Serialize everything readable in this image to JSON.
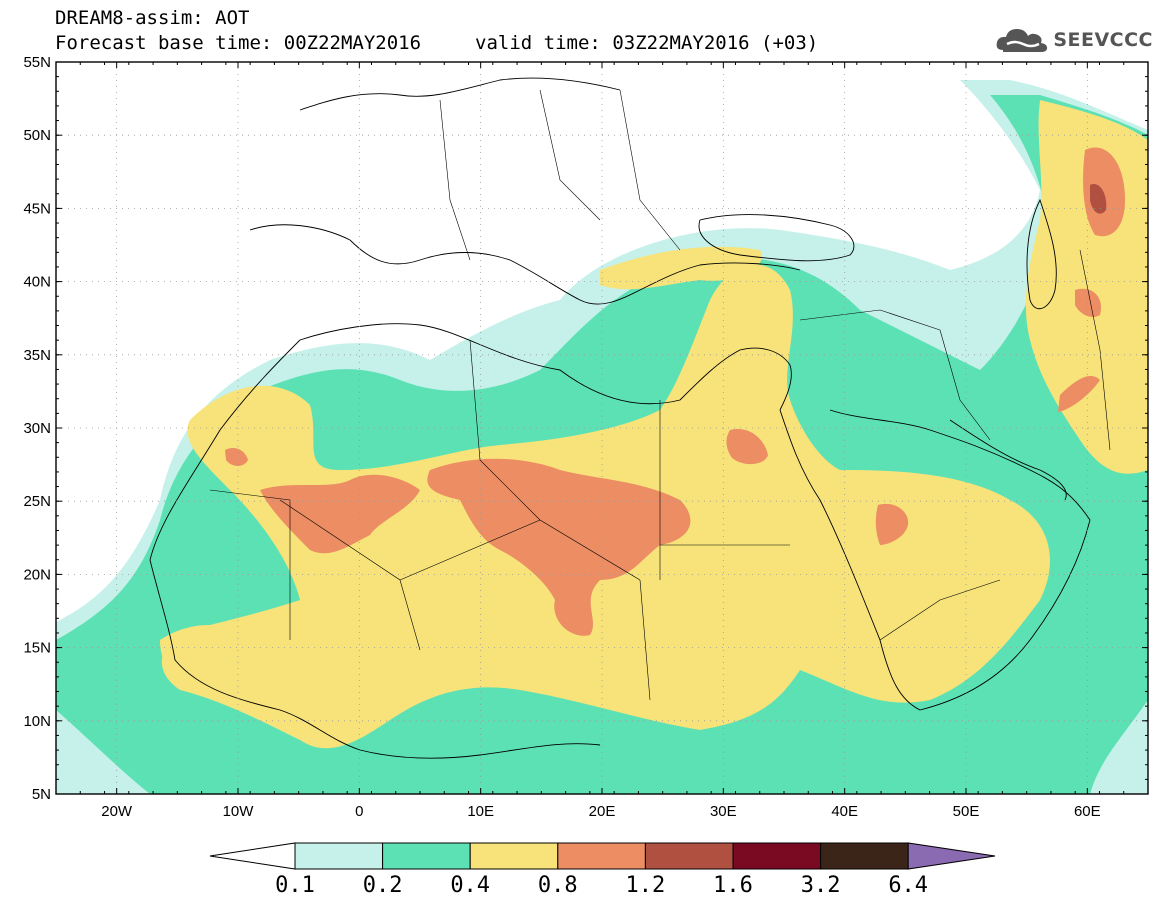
{
  "header": {
    "title_line1": "DREAM8-assim: AOT",
    "base_time": "Forecast base time: 00Z22MAY2016",
    "valid_time": "valid time: 03Z22MAY2016 (+03)"
  },
  "logo": {
    "text": "SEEVCCC",
    "icon": "cloud-icon"
  },
  "map": {
    "lon_range": [
      -25,
      65
    ],
    "lat_range": [
      5,
      55
    ],
    "y_ticks": [
      "55N",
      "50N",
      "45N",
      "40N",
      "35N",
      "30N",
      "25N",
      "20N",
      "15N",
      "10N",
      "5N"
    ],
    "x_ticks": [
      "20W",
      "10W",
      "0",
      "10E",
      "20E",
      "30E",
      "40E",
      "50E",
      "60E"
    ],
    "grid": "dotted"
  },
  "colorbar": {
    "labels": [
      "0.1",
      "0.2",
      "0.4",
      "0.8",
      "1.2",
      "1.6",
      "3.2",
      "6.4"
    ],
    "colors": [
      "#ffffff",
      "#c5f1ea",
      "#5ce1b5",
      "#f7e37a",
      "#ec8d64",
      "#b05040",
      "#7a0a22",
      "#3b2418",
      "#8a6ab0"
    ]
  }
}
